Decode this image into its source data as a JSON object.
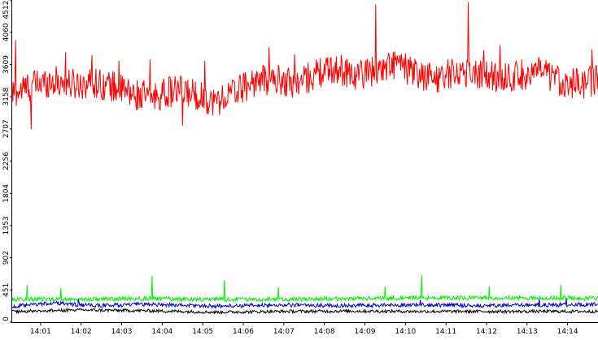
{
  "chart_data": {
    "type": "line",
    "title": "",
    "xlabel": "",
    "ylabel": "",
    "ylim": [
      0,
      4512
    ],
    "y_ticks": [
      0,
      451,
      902,
      1353,
      1804,
      2256,
      2707,
      3158,
      3609,
      4060,
      4512
    ],
    "y_tick_labels": [
      "0",
      "451",
      "902",
      "1353",
      "1804",
      "2256",
      "2707",
      "3158",
      "3609",
      "4060",
      "4512"
    ],
    "x_range": [
      "14:00:18",
      "14:14:45"
    ],
    "x_ticks": [
      "14:01",
      "14:02",
      "14:03",
      "14:04",
      "14:05",
      "14:06",
      "14:07",
      "14:08",
      "14:09",
      "14:10",
      "14:11",
      "14:12",
      "14:13",
      "14:14"
    ],
    "grid": false,
    "legend": "none",
    "series": [
      {
        "color": "#ff0000",
        "base": [
          [
            0,
            3200
          ],
          [
            30,
            3320
          ],
          [
            60,
            3380
          ],
          [
            90,
            3330
          ],
          [
            120,
            3360
          ],
          [
            150,
            3300
          ],
          [
            180,
            3180
          ],
          [
            210,
            3160
          ],
          [
            240,
            3240
          ],
          [
            270,
            3200
          ],
          [
            300,
            3080
          ],
          [
            330,
            3230
          ],
          [
            360,
            3380
          ],
          [
            390,
            3400
          ],
          [
            420,
            3340
          ],
          [
            450,
            3480
          ],
          [
            480,
            3550
          ],
          [
            510,
            3460
          ],
          [
            540,
            3540
          ],
          [
            570,
            3620
          ],
          [
            600,
            3450
          ],
          [
            630,
            3420
          ],
          [
            660,
            3520
          ],
          [
            690,
            3480
          ],
          [
            720,
            3420
          ],
          [
            750,
            3460
          ],
          [
            780,
            3500
          ],
          [
            810,
            3380
          ],
          [
            840,
            3330
          ],
          [
            867,
            3400
          ]
        ],
        "spread": 220,
        "spikes": [
          [
            5,
            3950
          ],
          [
            28,
            2700
          ],
          [
            79,
            3780
          ],
          [
            118,
            3740
          ],
          [
            158,
            3660
          ],
          [
            204,
            3680
          ],
          [
            252,
            2750
          ],
          [
            285,
            3660
          ],
          [
            380,
            3850
          ],
          [
            418,
            3750
          ],
          [
            488,
            3660
          ],
          [
            529,
            3650
          ],
          [
            538,
            4450
          ],
          [
            591,
            3660
          ],
          [
            628,
            3580
          ],
          [
            675,
            4480
          ],
          [
            698,
            3810
          ],
          [
            722,
            3880
          ],
          [
            858,
            3820
          ]
        ]
      },
      {
        "color": "#00ee00",
        "base": [
          [
            0,
            320
          ],
          [
            100,
            320
          ],
          [
            200,
            330
          ],
          [
            300,
            320
          ],
          [
            400,
            320
          ],
          [
            500,
            330
          ],
          [
            600,
            340
          ],
          [
            700,
            340
          ],
          [
            867,
            335
          ]
        ],
        "spread": 30,
        "spikes": [
          [
            22,
            520
          ],
          [
            72,
            480
          ],
          [
            207,
            650
          ],
          [
            314,
            590
          ],
          [
            394,
            490
          ],
          [
            552,
            500
          ],
          [
            606,
            660
          ],
          [
            706,
            500
          ],
          [
            812,
            520
          ]
        ]
      },
      {
        "color": "#0000cc",
        "base": [
          [
            0,
            215
          ],
          [
            60,
            270
          ],
          [
            120,
            230
          ],
          [
            200,
            250
          ],
          [
            300,
            225
          ],
          [
            400,
            240
          ],
          [
            500,
            230
          ],
          [
            600,
            245
          ],
          [
            700,
            230
          ],
          [
            867,
            250
          ]
        ],
        "spread": 28,
        "spikes": [
          [
            98,
            330
          ],
          [
            604,
            310
          ],
          [
            780,
            330
          ],
          [
            820,
            320
          ]
        ]
      },
      {
        "color": "#000000",
        "base": [
          [
            0,
            150
          ],
          [
            100,
            170
          ],
          [
            200,
            160
          ],
          [
            300,
            140
          ],
          [
            400,
            150
          ],
          [
            500,
            155
          ],
          [
            600,
            150
          ],
          [
            700,
            150
          ],
          [
            867,
            150
          ]
        ],
        "spread": 22,
        "spikes": []
      }
    ]
  }
}
